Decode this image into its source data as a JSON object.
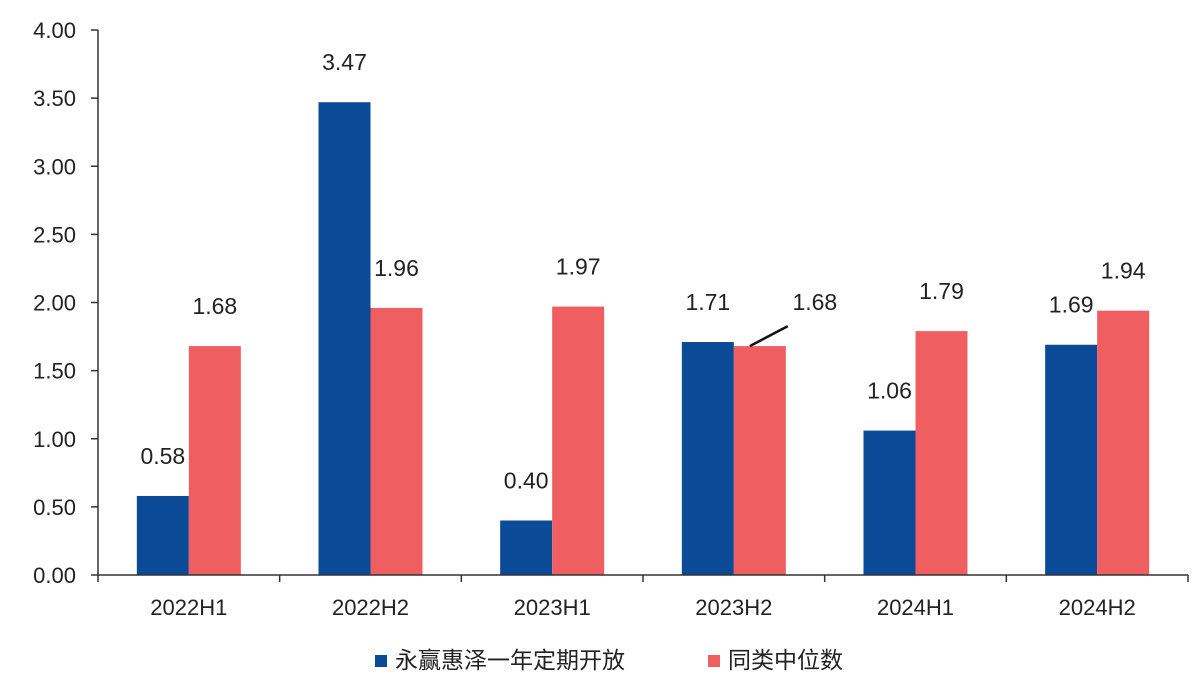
{
  "chart_data": {
    "type": "bar",
    "categories": [
      "2022H1",
      "2022H2",
      "2023H1",
      "2023H2",
      "2024H1",
      "2024H2"
    ],
    "series": [
      {
        "name": "永赢惠泽一年定期开放",
        "color": "#0b4a97",
        "values": [
          0.58,
          3.47,
          0.4,
          1.71,
          1.06,
          1.69
        ]
      },
      {
        "name": "同类中位数",
        "color": "#ef5f61",
        "values": [
          1.68,
          1.96,
          1.97,
          1.68,
          1.79,
          1.94
        ]
      }
    ],
    "data_labels": [
      [
        "0.58",
        "3.47",
        "0.40",
        "1.71",
        "1.06",
        "1.69"
      ],
      [
        "1.68",
        "1.96",
        "1.97",
        "1.68",
        "1.79",
        "1.94"
      ]
    ],
    "y_ticks": [
      "0.00",
      "0.50",
      "1.00",
      "1.50",
      "2.00",
      "2.50",
      "3.00",
      "3.50",
      "4.00"
    ],
    "ylim": [
      0,
      4
    ],
    "grid": false,
    "legend_position": "bottom-center",
    "title": "",
    "xlabel": "",
    "ylabel": ""
  }
}
